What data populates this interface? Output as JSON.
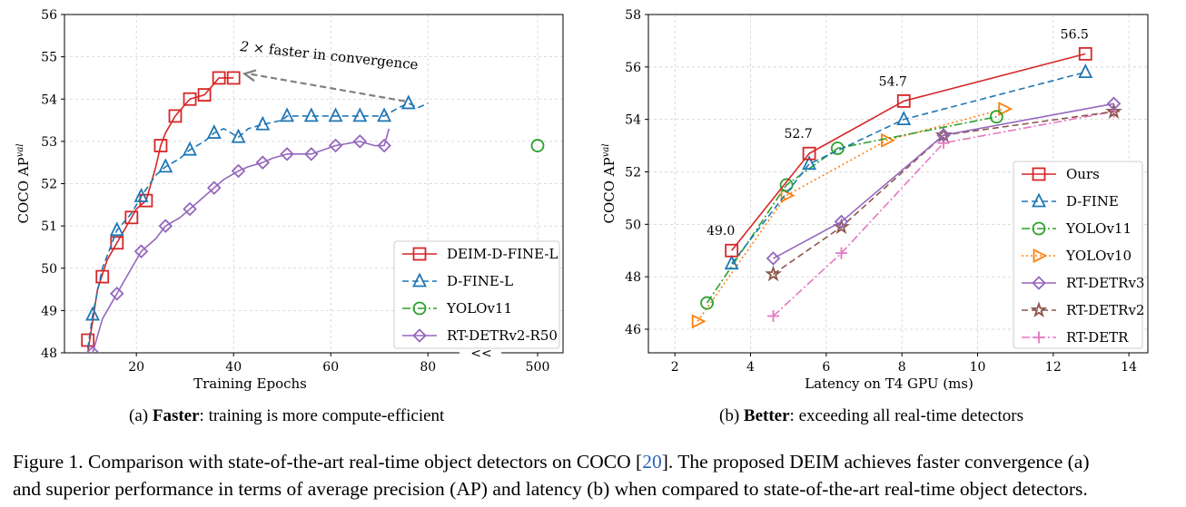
{
  "caption": {
    "prefix": "Figure 1. Comparison with state-of-the-art real-time object detectors on COCO [",
    "cite": "20",
    "line1_rest": "]. The proposed DEIM achieves faster convergence (a)",
    "line2": "and superior performance in terms of average precision (AP) and latency (b) when compared to state-of-the-art real-time object detectors."
  },
  "colors": {
    "red": "#d62728",
    "blue": "#1f77b4",
    "green": "#2ca02c",
    "orange": "#ff7f0e",
    "purple": "#9467bd",
    "brown": "#8c564b",
    "pink": "#e377c2",
    "arrow": "#808080"
  },
  "chart_data": [
    {
      "type": "line",
      "subcaption": {
        "prefix": "(a) ",
        "bold": "Faster",
        "rest": ": training is more compute-efficient"
      },
      "xlabel": "Training Epochs",
      "ylabel_main": "COCO AP",
      "ylabel_sup": "val",
      "xticks": [
        "20",
        "40",
        "60",
        "80",
        "500"
      ],
      "ylim": [
        48,
        56
      ],
      "yticks": [
        "48",
        "49",
        "50",
        "51",
        "52",
        "53",
        "54",
        "55",
        "56"
      ],
      "axis_break": "<<",
      "annotation": {
        "prefix": "2",
        "times": "×",
        "text": " faster in convergence"
      },
      "legend_position": "lower-right",
      "series": [
        {
          "name": "DEIM-D-FINE-L",
          "marker": "square",
          "color": "red",
          "style": "solid",
          "curve": [
            [
              10,
              48.0
            ],
            [
              12,
              49.5
            ],
            [
              14,
              50.2
            ],
            [
              16,
              50.6
            ],
            [
              18,
              51.0
            ],
            [
              20,
              51.4
            ],
            [
              22,
              51.6
            ],
            [
              24,
              52.4
            ],
            [
              25,
              52.9
            ],
            [
              26,
              53.2
            ],
            [
              28,
              53.6
            ],
            [
              31,
              54.0
            ],
            [
              34,
              54.1
            ],
            [
              37,
              54.5
            ],
            [
              40,
              54.5
            ]
          ],
          "markers": [
            [
              10,
              48.3
            ],
            [
              13,
              49.8
            ],
            [
              16,
              50.6
            ],
            [
              19,
              51.2
            ],
            [
              22,
              51.6
            ],
            [
              25,
              52.9
            ],
            [
              28,
              53.6
            ],
            [
              31,
              54.0
            ],
            [
              34,
              54.1
            ],
            [
              37,
              54.5
            ],
            [
              40,
              54.5
            ]
          ]
        },
        {
          "name": "D-FINE-L",
          "marker": "triangle",
          "color": "blue",
          "style": "dashed",
          "curve": [
            [
              10,
              48.1
            ],
            [
              11,
              48.9
            ],
            [
              13,
              50.0
            ],
            [
              16,
              50.9
            ],
            [
              19,
              51.3
            ],
            [
              21,
              51.7
            ],
            [
              24,
              52.2
            ],
            [
              26,
              52.4
            ],
            [
              29,
              52.6
            ],
            [
              31,
              52.8
            ],
            [
              34,
              53.0
            ],
            [
              36,
              53.2
            ],
            [
              38,
              53.3
            ],
            [
              41,
              53.1
            ],
            [
              43,
              53.3
            ],
            [
              46,
              53.4
            ],
            [
              50,
              53.5
            ],
            [
              51,
              53.6
            ],
            [
              56,
              53.6
            ],
            [
              61,
              53.6
            ],
            [
              66,
              53.6
            ],
            [
              71,
              53.6
            ],
            [
              74,
              53.8
            ],
            [
              76,
              53.9
            ],
            [
              78,
              53.8
            ],
            [
              80,
              53.9
            ]
          ],
          "markers": [
            [
              11,
              48.9
            ],
            [
              16,
              50.9
            ],
            [
              21,
              51.7
            ],
            [
              26,
              52.4
            ],
            [
              31,
              52.8
            ],
            [
              36,
              53.2
            ],
            [
              41,
              53.1
            ],
            [
              46,
              53.4
            ],
            [
              51,
              53.6
            ],
            [
              56,
              53.6
            ],
            [
              61,
              53.6
            ],
            [
              66,
              53.6
            ],
            [
              71,
              53.6
            ],
            [
              76,
              53.9
            ]
          ]
        },
        {
          "name": "YOLOv11",
          "marker": "circle",
          "color": "green",
          "style": "dashdot",
          "curve": [],
          "markers": [
            [
              500,
              52.9
            ]
          ]
        },
        {
          "name": "RT-DETRv2-R50",
          "marker": "diamond",
          "color": "purple",
          "style": "solid",
          "curve": [
            [
              10,
              47.9
            ],
            [
              11,
              48.0
            ],
            [
              13,
              48.8
            ],
            [
              16,
              49.4
            ],
            [
              19,
              50.0
            ],
            [
              21,
              50.4
            ],
            [
              24,
              50.7
            ],
            [
              26,
              51.0
            ],
            [
              29,
              51.2
            ],
            [
              31,
              51.4
            ],
            [
              34,
              51.7
            ],
            [
              36,
              51.9
            ],
            [
              38,
              52.1
            ],
            [
              41,
              52.3
            ],
            [
              43,
              52.4
            ],
            [
              46,
              52.5
            ],
            [
              48,
              52.6
            ],
            [
              51,
              52.7
            ],
            [
              56,
              52.7
            ],
            [
              61,
              52.9
            ],
            [
              66,
              53.0
            ],
            [
              69,
              52.9
            ],
            [
              71,
              52.9
            ],
            [
              72,
              53.3
            ]
          ],
          "markers": [
            [
              11,
              48.0
            ],
            [
              16,
              49.4
            ],
            [
              21,
              50.4
            ],
            [
              26,
              51.0
            ],
            [
              31,
              51.4
            ],
            [
              36,
              51.9
            ],
            [
              41,
              52.3
            ],
            [
              46,
              52.5
            ],
            [
              51,
              52.7
            ],
            [
              56,
              52.7
            ],
            [
              61,
              52.9
            ],
            [
              66,
              53.0
            ],
            [
              71,
              52.9
            ]
          ]
        }
      ]
    },
    {
      "type": "line",
      "subcaption": {
        "prefix": "(b) ",
        "bold": "Better",
        "rest": ": exceeding all real-time detectors"
      },
      "xlabel": "Latency on T4 GPU (ms)",
      "ylabel_main": "COCO AP",
      "ylabel_sup": "val",
      "xlim": [
        1.3,
        14.5
      ],
      "ylim": [
        45.1,
        58
      ],
      "xticks": [
        2,
        4,
        6,
        8,
        10,
        12,
        14
      ],
      "yticks": [
        46,
        48,
        50,
        52,
        54,
        56,
        58
      ],
      "legend_position": "lower-right",
      "data_labels": [
        {
          "text": "49.0",
          "x": 3.5,
          "y": 49.0
        },
        {
          "text": "52.7",
          "x": 5.55,
          "y": 52.7
        },
        {
          "text": "54.7",
          "x": 8.05,
          "y": 54.7
        },
        {
          "text": "56.5",
          "x": 12.85,
          "y": 56.5
        }
      ],
      "series": [
        {
          "name": "Ours",
          "marker": "square",
          "color": "red",
          "style": "solid",
          "points": [
            [
              3.5,
              49.0
            ],
            [
              5.55,
              52.7
            ],
            [
              8.05,
              54.7
            ],
            [
              12.85,
              56.5
            ]
          ]
        },
        {
          "name": "D-FINE",
          "marker": "triangle",
          "color": "blue",
          "style": "dashed",
          "points": [
            [
              3.5,
              48.5
            ],
            [
              5.55,
              52.3
            ],
            [
              8.05,
              54.0
            ],
            [
              12.85,
              55.8
            ]
          ]
        },
        {
          "name": "YOLOv11",
          "marker": "circle",
          "color": "green",
          "style": "dashdot",
          "points": [
            [
              2.85,
              47.0
            ],
            [
              4.95,
              51.5
            ],
            [
              6.3,
              52.9
            ],
            [
              10.5,
              54.1
            ]
          ]
        },
        {
          "name": "YOLOv10",
          "marker": "triangle-right",
          "color": "orange",
          "style": "dotted",
          "points": [
            [
              2.6,
              46.3
            ],
            [
              4.95,
              51.1
            ],
            [
              7.6,
              53.2
            ],
            [
              10.7,
              54.4
            ]
          ]
        },
        {
          "name": "RT-DETRv3",
          "marker": "diamond",
          "color": "purple",
          "style": "solid",
          "points": [
            [
              4.6,
              48.7
            ],
            [
              6.4,
              50.1
            ],
            [
              9.1,
              53.4
            ],
            [
              13.6,
              54.6
            ]
          ]
        },
        {
          "name": "RT-DETRv2",
          "marker": "star",
          "color": "brown",
          "style": "dashed",
          "points": [
            [
              4.6,
              48.1
            ],
            [
              6.4,
              49.9
            ],
            [
              9.1,
              53.4
            ],
            [
              13.6,
              54.3
            ]
          ]
        },
        {
          "name": "RT-DETR",
          "marker": "plus",
          "color": "pink",
          "style": "dashdot",
          "points": [
            [
              4.6,
              46.5
            ],
            [
              6.4,
              48.9
            ],
            [
              9.1,
              53.1
            ],
            [
              13.6,
              54.3
            ]
          ]
        }
      ]
    }
  ]
}
